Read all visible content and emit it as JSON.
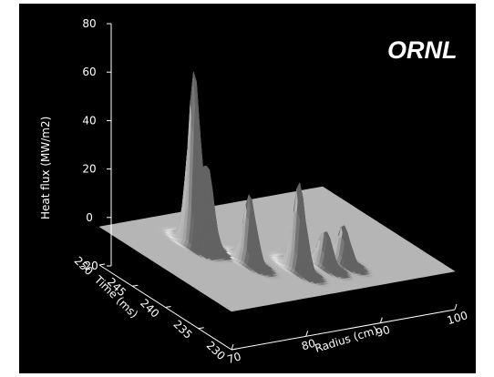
{
  "chart_data": {
    "type": "surface3d",
    "title": "",
    "watermark": "ORNL",
    "zlabel": "Heat flux (MW/m2)",
    "xlabel": "Radius (cm)",
    "ylabel": "Time (ms)",
    "z_ticks": [
      "80",
      "60",
      "40",
      "20",
      "0",
      "-20"
    ],
    "z_tick_values": [
      80,
      60,
      40,
      20,
      0,
      -20
    ],
    "x_ticks": [
      "70",
      "80",
      "90",
      "100"
    ],
    "x_tick_values": [
      70,
      80,
      90,
      100
    ],
    "y_ticks": [
      "250",
      "245",
      "240",
      "235",
      "230"
    ],
    "y_tick_values": [
      250,
      245,
      240,
      235,
      230
    ],
    "xlim": [
      70,
      100
    ],
    "ylim": [
      230,
      250
    ],
    "zlim": [
      -20,
      80
    ],
    "surface_color": "#b8b8b8",
    "background": "#000000",
    "peaks": [
      {
        "radius": 77.0,
        "time": 243.5,
        "height": 72
      },
      {
        "radius": 78.2,
        "time": 243.0,
        "height": 35
      },
      {
        "radius": 80.0,
        "time": 238.5,
        "height": 28
      },
      {
        "radius": 84.0,
        "time": 235.5,
        "height": 36
      },
      {
        "radius": 87.5,
        "time": 235.5,
        "height": 15
      },
      {
        "radius": 90.0,
        "time": 235.5,
        "height": 15
      }
    ]
  }
}
